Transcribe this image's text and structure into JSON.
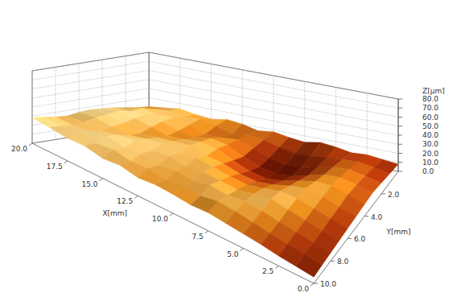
{
  "chart_data": {
    "type": "surface",
    "x_label": "X[mm]",
    "y_label": "Y[mm]",
    "z_label": "Z[µm]",
    "xlim": [
      0,
      20
    ],
    "ylim": [
      0,
      10
    ],
    "zlim": [
      0,
      80
    ],
    "xticks": [
      {
        "value": 0,
        "label": "0.0"
      },
      2.5,
      {
        "value": 5,
        "label": "5.0"
      },
      7.5,
      {
        "value": 10,
        "label": "10.0"
      },
      12.5,
      {
        "value": 15,
        "label": "15.0"
      },
      17.5,
      {
        "value": 20,
        "label": "20.0"
      }
    ],
    "yticks": [
      {
        "value": 2,
        "label": "2.0"
      },
      {
        "value": 4,
        "label": "4.0"
      },
      {
        "value": 6,
        "label": "6.0"
      },
      {
        "value": 8,
        "label": "8.0"
      },
      {
        "value": 10,
        "label": "10.0"
      }
    ],
    "zticks": [
      {
        "value": 0,
        "label": "0.0"
      },
      {
        "value": 10,
        "label": "10.0"
      },
      {
        "value": 20,
        "label": "20.0"
      },
      {
        "value": 30,
        "label": "30.0"
      },
      {
        "value": 40,
        "label": "40.0"
      },
      {
        "value": 50,
        "label": "50.0"
      },
      {
        "value": 60,
        "label": "60.0"
      },
      {
        "value": 70,
        "label": "70.0"
      },
      {
        "value": 80,
        "label": "80.0"
      }
    ],
    "grid": true,
    "x": [
      0,
      1.25,
      2.5,
      3.75,
      5,
      6.25,
      7.5,
      8.75,
      10,
      11.25,
      12.5,
      13.75,
      15,
      16.25,
      17.5,
      18.75,
      20
    ],
    "y": [
      0,
      1,
      2,
      3,
      4,
      5,
      6,
      7,
      8,
      9,
      10
    ],
    "z": [
      [
        8,
        10,
        12,
        11,
        14,
        16,
        13,
        15,
        18,
        16,
        20,
        22,
        19,
        21,
        24,
        22,
        20
      ],
      [
        10,
        13,
        15,
        14,
        12,
        10,
        9,
        12,
        16,
        18,
        15,
        20,
        24,
        22,
        25,
        23,
        21
      ],
      [
        12,
        15,
        18,
        16,
        11,
        7,
        5,
        8,
        14,
        19,
        17,
        16,
        22,
        26,
        24,
        27,
        23
      ],
      [
        14,
        17,
        20,
        18,
        12,
        6,
        4,
        6,
        12,
        20,
        22,
        18,
        20,
        25,
        28,
        26,
        25
      ],
      [
        13,
        18,
        22,
        21,
        16,
        10,
        7,
        9,
        15,
        22,
        24,
        21,
        19,
        23,
        27,
        29,
        26
      ],
      [
        12,
        16,
        21,
        24,
        20,
        15,
        12,
        14,
        19,
        21,
        26,
        24,
        22,
        20,
        25,
        28,
        27
      ],
      [
        11,
        15,
        19,
        23,
        24,
        20,
        17,
        19,
        22,
        25,
        23,
        27,
        25,
        22,
        24,
        27,
        26
      ],
      [
        10,
        13,
        17,
        21,
        25,
        23,
        20,
        22,
        24,
        22,
        26,
        24,
        28,
        26,
        23,
        25,
        24
      ],
      [
        9,
        12,
        15,
        18,
        22,
        24,
        22,
        25,
        21,
        24,
        22,
        26,
        25,
        29,
        26,
        24,
        25
      ],
      [
        8,
        11,
        13,
        16,
        19,
        22,
        24,
        21,
        23,
        20,
        24,
        23,
        27,
        25,
        28,
        26,
        27
      ],
      [
        7,
        9,
        11,
        14,
        16,
        18,
        20,
        19,
        21,
        22,
        20,
        24,
        22,
        26,
        25,
        27,
        28
      ]
    ]
  }
}
